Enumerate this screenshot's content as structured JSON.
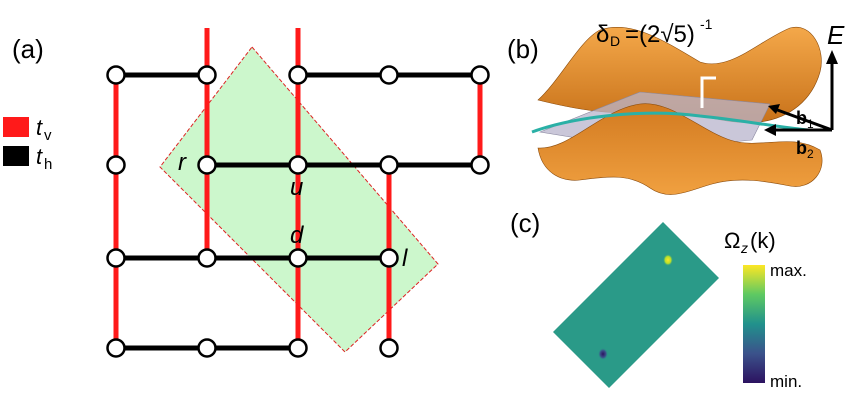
{
  "panels": {
    "a": "(a)",
    "b": "(b)",
    "c": "(c)"
  },
  "legend": {
    "items": [
      {
        "symbol": "t",
        "subscript": "v",
        "color": "#ff1a1a"
      },
      {
        "symbol": "t",
        "subscript": "h",
        "color": "#000000"
      }
    ]
  },
  "lattice": {
    "site_labels": {
      "r": "r",
      "u": "u",
      "d": "d",
      "l": "l"
    },
    "unit_cell_fill": "#ccf7cc",
    "unit_cell_border": "#dd2222"
  },
  "band_plot": {
    "gap_label_main": "δ",
    "gap_label_sub": "D",
    "gap_label_value": "=(2√5)",
    "gap_label_exp": "-1",
    "axis_label": "E",
    "vector_b1": "b",
    "vector_b1_sub": "1",
    "vector_b2": "b",
    "vector_b2_sub": "2",
    "surface_color": "#e8901e",
    "plane_color": "#b8b4cc",
    "curve_color": "#2ab0a6"
  },
  "berry_plot": {
    "title_main": "Ω",
    "title_sub": "z",
    "title_arg": "(k)",
    "colorbar_max": "max.",
    "colorbar_min": "min.",
    "field_color": "#2a9a88"
  },
  "colors": {
    "hopping_vertical": "#ff1a1a",
    "hopping_horizontal": "#000000"
  }
}
